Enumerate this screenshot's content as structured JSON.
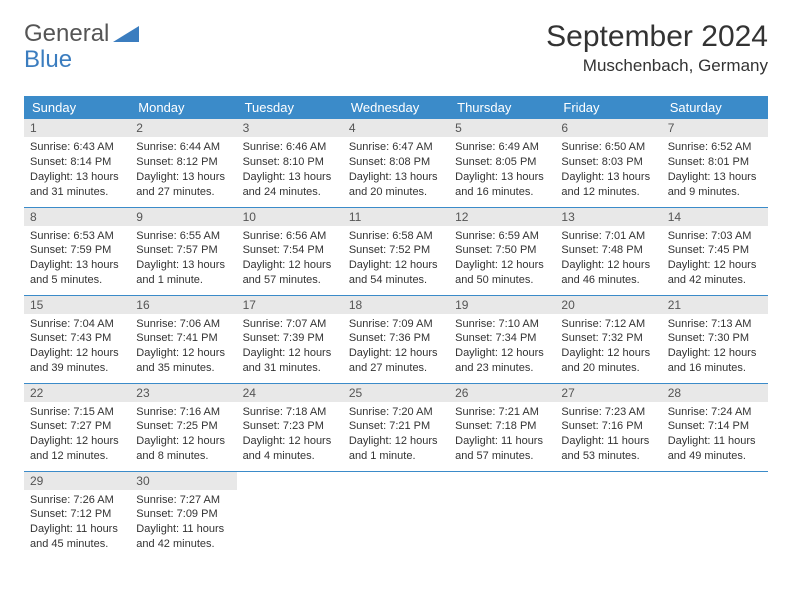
{
  "logo": {
    "part1": "General",
    "part2": "Blue"
  },
  "title": "September 2024",
  "location": "Muschenbach, Germany",
  "colors": {
    "header_bg": "#3b8bc9",
    "header_text": "#ffffff",
    "daynum_bg": "#e8e8e8",
    "border": "#3b8bc9",
    "logo_blue": "#3b7dbf"
  },
  "weekdays": [
    "Sunday",
    "Monday",
    "Tuesday",
    "Wednesday",
    "Thursday",
    "Friday",
    "Saturday"
  ],
  "days": [
    {
      "n": "1",
      "sr": "6:43 AM",
      "ss": "8:14 PM",
      "dl": "13 hours and 31 minutes."
    },
    {
      "n": "2",
      "sr": "6:44 AM",
      "ss": "8:12 PM",
      "dl": "13 hours and 27 minutes."
    },
    {
      "n": "3",
      "sr": "6:46 AM",
      "ss": "8:10 PM",
      "dl": "13 hours and 24 minutes."
    },
    {
      "n": "4",
      "sr": "6:47 AM",
      "ss": "8:08 PM",
      "dl": "13 hours and 20 minutes."
    },
    {
      "n": "5",
      "sr": "6:49 AM",
      "ss": "8:05 PM",
      "dl": "13 hours and 16 minutes."
    },
    {
      "n": "6",
      "sr": "6:50 AM",
      "ss": "8:03 PM",
      "dl": "13 hours and 12 minutes."
    },
    {
      "n": "7",
      "sr": "6:52 AM",
      "ss": "8:01 PM",
      "dl": "13 hours and 9 minutes."
    },
    {
      "n": "8",
      "sr": "6:53 AM",
      "ss": "7:59 PM",
      "dl": "13 hours and 5 minutes."
    },
    {
      "n": "9",
      "sr": "6:55 AM",
      "ss": "7:57 PM",
      "dl": "13 hours and 1 minute."
    },
    {
      "n": "10",
      "sr": "6:56 AM",
      "ss": "7:54 PM",
      "dl": "12 hours and 57 minutes."
    },
    {
      "n": "11",
      "sr": "6:58 AM",
      "ss": "7:52 PM",
      "dl": "12 hours and 54 minutes."
    },
    {
      "n": "12",
      "sr": "6:59 AM",
      "ss": "7:50 PM",
      "dl": "12 hours and 50 minutes."
    },
    {
      "n": "13",
      "sr": "7:01 AM",
      "ss": "7:48 PM",
      "dl": "12 hours and 46 minutes."
    },
    {
      "n": "14",
      "sr": "7:03 AM",
      "ss": "7:45 PM",
      "dl": "12 hours and 42 minutes."
    },
    {
      "n": "15",
      "sr": "7:04 AM",
      "ss": "7:43 PM",
      "dl": "12 hours and 39 minutes."
    },
    {
      "n": "16",
      "sr": "7:06 AM",
      "ss": "7:41 PM",
      "dl": "12 hours and 35 minutes."
    },
    {
      "n": "17",
      "sr": "7:07 AM",
      "ss": "7:39 PM",
      "dl": "12 hours and 31 minutes."
    },
    {
      "n": "18",
      "sr": "7:09 AM",
      "ss": "7:36 PM",
      "dl": "12 hours and 27 minutes."
    },
    {
      "n": "19",
      "sr": "7:10 AM",
      "ss": "7:34 PM",
      "dl": "12 hours and 23 minutes."
    },
    {
      "n": "20",
      "sr": "7:12 AM",
      "ss": "7:32 PM",
      "dl": "12 hours and 20 minutes."
    },
    {
      "n": "21",
      "sr": "7:13 AM",
      "ss": "7:30 PM",
      "dl": "12 hours and 16 minutes."
    },
    {
      "n": "22",
      "sr": "7:15 AM",
      "ss": "7:27 PM",
      "dl": "12 hours and 12 minutes."
    },
    {
      "n": "23",
      "sr": "7:16 AM",
      "ss": "7:25 PM",
      "dl": "12 hours and 8 minutes."
    },
    {
      "n": "24",
      "sr": "7:18 AM",
      "ss": "7:23 PM",
      "dl": "12 hours and 4 minutes."
    },
    {
      "n": "25",
      "sr": "7:20 AM",
      "ss": "7:21 PM",
      "dl": "12 hours and 1 minute."
    },
    {
      "n": "26",
      "sr": "7:21 AM",
      "ss": "7:18 PM",
      "dl": "11 hours and 57 minutes."
    },
    {
      "n": "27",
      "sr": "7:23 AM",
      "ss": "7:16 PM",
      "dl": "11 hours and 53 minutes."
    },
    {
      "n": "28",
      "sr": "7:24 AM",
      "ss": "7:14 PM",
      "dl": "11 hours and 49 minutes."
    },
    {
      "n": "29",
      "sr": "7:26 AM",
      "ss": "7:12 PM",
      "dl": "11 hours and 45 minutes."
    },
    {
      "n": "30",
      "sr": "7:27 AM",
      "ss": "7:09 PM",
      "dl": "11 hours and 42 minutes."
    }
  ],
  "labels": {
    "sunrise": "Sunrise:",
    "sunset": "Sunset:",
    "daylight": "Daylight:"
  }
}
